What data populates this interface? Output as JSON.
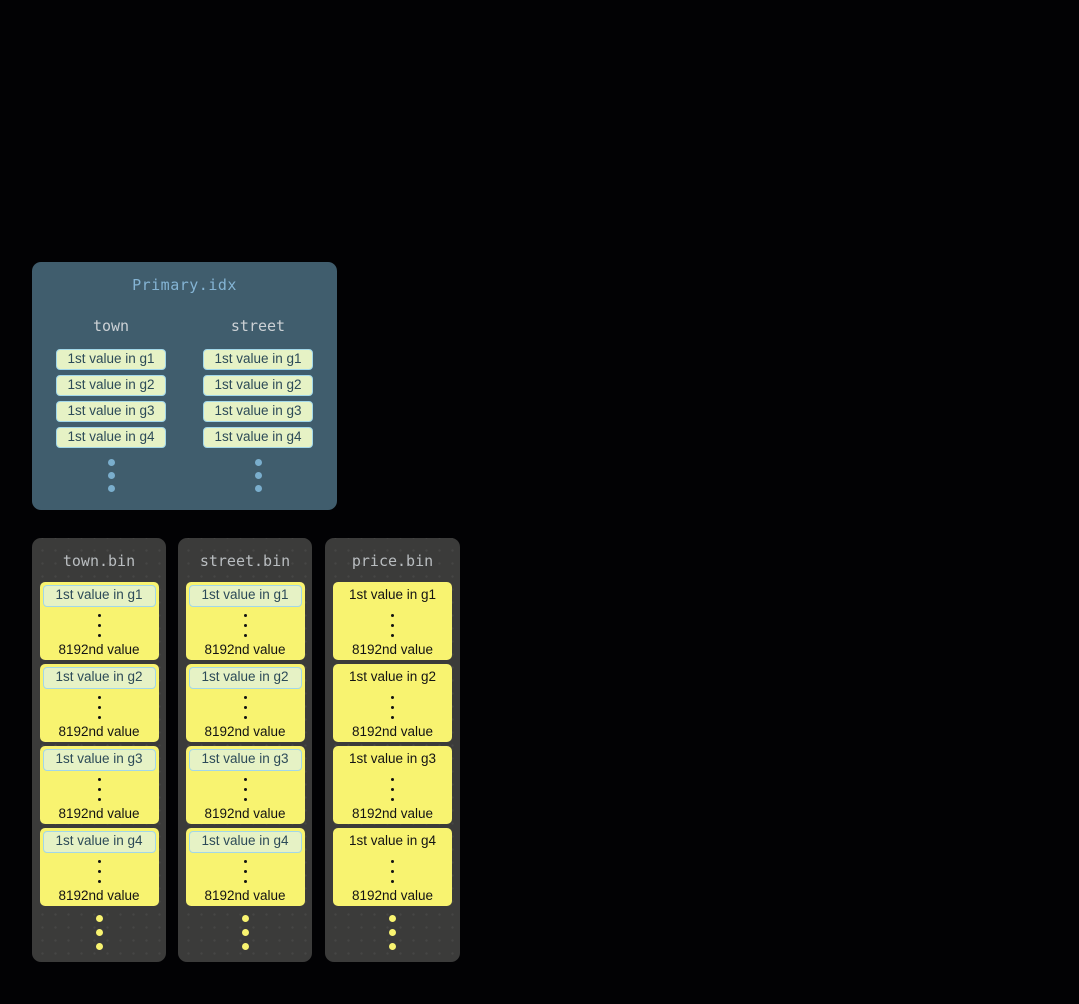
{
  "diagram": {
    "description": "Sparse primary index file mapping granule first-values to column data files",
    "background": "#020204"
  },
  "primary_index": {
    "title": "Primary.idx",
    "columns": [
      {
        "name": "town",
        "entries": [
          "1st value in g1",
          "1st value in g2",
          "1st value in g3",
          "1st value in g4"
        ]
      },
      {
        "name": "street",
        "entries": [
          "1st value in g1",
          "1st value in g2",
          "1st value in g3",
          "1st value in g4"
        ]
      }
    ]
  },
  "bins": [
    {
      "title": "town.bin",
      "first_values_highlighted": true,
      "groups": [
        {
          "first": "1st value in g1",
          "last": "8192nd value"
        },
        {
          "first": "1st value in g2",
          "last": "8192nd value"
        },
        {
          "first": "1st value in g3",
          "last": "8192nd value"
        },
        {
          "first": "1st value in g4",
          "last": "8192nd value"
        }
      ]
    },
    {
      "title": "street.bin",
      "first_values_highlighted": true,
      "groups": [
        {
          "first": "1st value in g1",
          "last": "8192nd value"
        },
        {
          "first": "1st value in g2",
          "last": "8192nd value"
        },
        {
          "first": "1st value in g3",
          "last": "8192nd value"
        },
        {
          "first": "1st value in g4",
          "last": "8192nd value"
        }
      ]
    },
    {
      "title": "price.bin",
      "first_values_highlighted": false,
      "groups": [
        {
          "first": "1st value in g1",
          "last": "8192nd value"
        },
        {
          "first": "1st value in g2",
          "last": "8192nd value"
        },
        {
          "first": "1st value in g3",
          "last": "8192nd value"
        },
        {
          "first": "1st value in g4",
          "last": "8192nd value"
        }
      ]
    }
  ],
  "colors": {
    "panel_slate": "#405d6d",
    "panel_title_blue": "#84b4d4",
    "column_header_gray": "#ccd1d5",
    "mark_green_fill": "#e6f2c5",
    "mark_border_blue": "#a2d7e9",
    "mark_text_slate": "#2c4a58",
    "bin_gray": "#3b3b3a",
    "bin_title_gray": "#b9bdc0",
    "granule_yellow": "#f8f370",
    "value_text_black": "#131313",
    "ellipsis_blue": "#7aaecd"
  }
}
